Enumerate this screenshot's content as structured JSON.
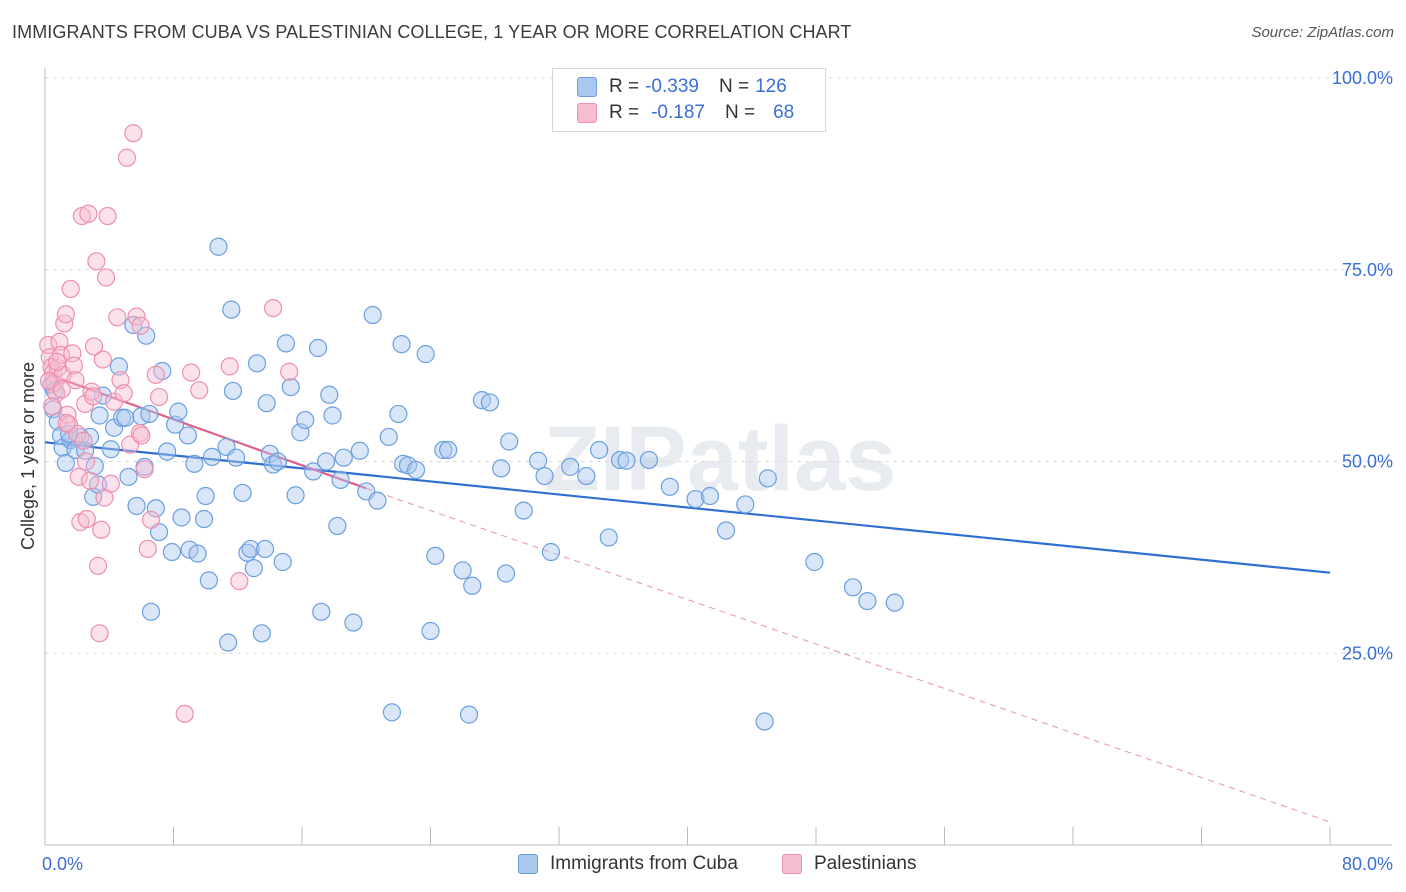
{
  "header": {
    "title": "IMMIGRANTS FROM CUBA VS PALESTINIAN COLLEGE, 1 YEAR OR MORE CORRELATION CHART",
    "source": "Source: ZipAtlas.com"
  },
  "legend_top": {
    "rows": [
      {
        "r_label": "R = ",
        "r_value": "-0.339",
        "n_label": "N = ",
        "n_value": "126"
      },
      {
        "r_label": "R = ",
        "r_value": "-0.187",
        "n_label": "N = ",
        "n_value": "68"
      }
    ]
  },
  "watermark": "ZIPatlas",
  "colors": {
    "cuba_fill": "#aac8ee",
    "cuba_stroke": "#6a9fe0",
    "cuba_line": "#2f6fd0",
    "pal_fill": "#f6bcd0",
    "pal_stroke": "#ee8fb0",
    "pal_line": "#e0608a",
    "tick_text": "#3a6fd6"
  },
  "chart_data": {
    "type": "scatter",
    "title": "IMMIGRANTS FROM CUBA VS PALESTINIAN COLLEGE, 1 YEAR OR MORE CORRELATION CHART",
    "xlabel": "",
    "ylabel": "College, 1 year or more",
    "xlim": [
      0,
      80
    ],
    "ylim": [
      0,
      100
    ],
    "x_tick_labels": [
      "0.0%",
      "80.0%"
    ],
    "y_tick_labels": [
      "25.0%",
      "50.0%",
      "75.0%",
      "100.0%"
    ],
    "y_ticks": [
      25,
      50,
      75,
      100
    ],
    "grid": true,
    "legend_position": "bottom",
    "series": [
      {
        "name": "Immigrants from Cuba",
        "r": -0.339,
        "n": 126,
        "trend": {
          "x0": 0,
          "y0": 52.5,
          "x1": 80,
          "y1": 35.5
        },
        "points": [
          [
            0.5,
            56.8
          ],
          [
            0.8,
            55.2
          ],
          [
            1.0,
            53.4
          ],
          [
            1.1,
            51.8
          ],
          [
            1.3,
            49.8
          ],
          [
            1.6,
            52.8
          ],
          [
            1.9,
            51.5
          ],
          [
            2.2,
            53.2
          ],
          [
            2.5,
            51.4
          ],
          [
            2.8,
            53.2
          ],
          [
            3.0,
            45.4
          ],
          [
            3.1,
            49.4
          ],
          [
            3.3,
            47.0
          ],
          [
            3.4,
            56.0
          ],
          [
            3.6,
            58.6
          ],
          [
            4.1,
            51.6
          ],
          [
            4.3,
            54.4
          ],
          [
            4.6,
            62.4
          ],
          [
            4.8,
            55.7
          ],
          [
            5.0,
            55.7
          ],
          [
            5.2,
            48.0
          ],
          [
            5.5,
            67.8
          ],
          [
            5.7,
            44.2
          ],
          [
            6.0,
            55.9
          ],
          [
            6.2,
            49.3
          ],
          [
            6.3,
            66.4
          ],
          [
            6.5,
            56.2
          ],
          [
            6.6,
            30.4
          ],
          [
            6.9,
            43.9
          ],
          [
            7.1,
            40.8
          ],
          [
            7.3,
            61.8
          ],
          [
            7.6,
            51.3
          ],
          [
            7.9,
            38.2
          ],
          [
            8.1,
            54.8
          ],
          [
            8.3,
            56.5
          ],
          [
            8.5,
            42.7
          ],
          [
            8.9,
            53.4
          ],
          [
            9.0,
            38.5
          ],
          [
            9.3,
            49.7
          ],
          [
            9.5,
            38.0
          ],
          [
            9.9,
            42.5
          ],
          [
            10.0,
            45.5
          ],
          [
            10.2,
            34.5
          ],
          [
            10.4,
            50.6
          ],
          [
            10.8,
            78.0
          ],
          [
            11.3,
            51.9
          ],
          [
            11.4,
            26.4
          ],
          [
            11.6,
            69.8
          ],
          [
            11.7,
            59.2
          ],
          [
            11.9,
            50.5
          ],
          [
            12.3,
            45.9
          ],
          [
            12.6,
            38.1
          ],
          [
            12.8,
            38.6
          ],
          [
            13.0,
            36.1
          ],
          [
            13.2,
            62.8
          ],
          [
            13.5,
            27.6
          ],
          [
            13.7,
            38.6
          ],
          [
            13.8,
            57.6
          ],
          [
            14.0,
            51.0
          ],
          [
            14.2,
            49.6
          ],
          [
            14.5,
            50.0
          ],
          [
            14.8,
            36.9
          ],
          [
            15.0,
            65.4
          ],
          [
            15.3,
            59.7
          ],
          [
            15.6,
            45.6
          ],
          [
            15.9,
            53.8
          ],
          [
            16.2,
            55.4
          ],
          [
            16.7,
            48.7
          ],
          [
            17.0,
            64.8
          ],
          [
            17.2,
            30.4
          ],
          [
            17.5,
            50.0
          ],
          [
            17.7,
            58.7
          ],
          [
            17.9,
            56.0
          ],
          [
            18.2,
            41.6
          ],
          [
            18.4,
            47.6
          ],
          [
            18.6,
            50.5
          ],
          [
            19.2,
            29.0
          ],
          [
            19.6,
            51.4
          ],
          [
            20.0,
            46.1
          ],
          [
            20.4,
            69.1
          ],
          [
            20.7,
            44.9
          ],
          [
            21.4,
            53.2
          ],
          [
            21.6,
            17.3
          ],
          [
            22.0,
            56.2
          ],
          [
            22.2,
            65.3
          ],
          [
            22.3,
            49.7
          ],
          [
            22.6,
            49.5
          ],
          [
            23.1,
            48.9
          ],
          [
            23.7,
            64.0
          ],
          [
            24.0,
            27.9
          ],
          [
            24.3,
            37.7
          ],
          [
            24.8,
            51.5
          ],
          [
            25.1,
            51.5
          ],
          [
            26.0,
            35.8
          ],
          [
            26.4,
            17.0
          ],
          [
            26.6,
            33.8
          ],
          [
            27.2,
            58.0
          ],
          [
            27.7,
            57.7
          ],
          [
            28.4,
            49.1
          ],
          [
            28.7,
            35.4
          ],
          [
            28.9,
            52.6
          ],
          [
            29.8,
            43.6
          ],
          [
            30.7,
            50.1
          ],
          [
            31.1,
            48.1
          ],
          [
            31.5,
            38.2
          ],
          [
            32.7,
            49.3
          ],
          [
            33.7,
            48.1
          ],
          [
            34.5,
            51.5
          ],
          [
            35.1,
            40.1
          ],
          [
            35.8,
            50.2
          ],
          [
            36.2,
            50.1
          ],
          [
            37.6,
            50.2
          ],
          [
            38.9,
            46.7
          ],
          [
            40.5,
            45.1
          ],
          [
            41.4,
            45.5
          ],
          [
            42.4,
            41.0
          ],
          [
            43.6,
            44.4
          ],
          [
            44.8,
            16.1
          ],
          [
            45.0,
            47.8
          ],
          [
            47.9,
            36.9
          ],
          [
            50.3,
            33.6
          ],
          [
            51.2,
            31.8
          ],
          [
            52.9,
            31.6
          ],
          [
            0.4,
            60.0
          ],
          [
            0.6,
            59.2
          ],
          [
            1.5,
            53.6
          ]
        ]
      },
      {
        "name": "Palestinians",
        "r": -0.187,
        "n": 68,
        "trend": {
          "x0": 0,
          "y0": 61.5,
          "x1": 20,
          "y1": 46.5
        },
        "trend_extended": {
          "x0": 20,
          "y0": 46.5,
          "x1": 80,
          "y1": 3.0
        },
        "points": [
          [
            0.2,
            65.2
          ],
          [
            0.3,
            63.6
          ],
          [
            0.4,
            62.3
          ],
          [
            0.5,
            61.5
          ],
          [
            0.6,
            60.2
          ],
          [
            0.7,
            58.9
          ],
          [
            0.8,
            62.2
          ],
          [
            0.9,
            65.6
          ],
          [
            1.0,
            63.9
          ],
          [
            1.1,
            61.3
          ],
          [
            1.2,
            68.0
          ],
          [
            1.3,
            69.2
          ],
          [
            1.4,
            56.1
          ],
          [
            1.5,
            54.8
          ],
          [
            1.6,
            72.5
          ],
          [
            1.7,
            64.1
          ],
          [
            1.8,
            62.5
          ],
          [
            1.9,
            60.6
          ],
          [
            2.0,
            53.6
          ],
          [
            2.1,
            48.0
          ],
          [
            2.2,
            42.1
          ],
          [
            2.3,
            82.0
          ],
          [
            2.4,
            52.7
          ],
          [
            2.5,
            57.5
          ],
          [
            2.6,
            42.5
          ],
          [
            2.7,
            82.3
          ],
          [
            2.8,
            47.5
          ],
          [
            2.9,
            59.1
          ],
          [
            3.0,
            58.5
          ],
          [
            3.2,
            76.1
          ],
          [
            3.3,
            36.4
          ],
          [
            3.4,
            27.6
          ],
          [
            3.5,
            41.1
          ],
          [
            3.6,
            63.3
          ],
          [
            3.7,
            45.3
          ],
          [
            3.8,
            74.0
          ],
          [
            3.9,
            82.0
          ],
          [
            4.1,
            47.1
          ],
          [
            4.3,
            57.8
          ],
          [
            4.5,
            68.8
          ],
          [
            4.7,
            60.6
          ],
          [
            4.9,
            58.9
          ],
          [
            5.1,
            89.6
          ],
          [
            5.3,
            52.2
          ],
          [
            5.5,
            92.8
          ],
          [
            5.7,
            68.9
          ],
          [
            5.9,
            53.7
          ],
          [
            6.0,
            53.4
          ],
          [
            6.2,
            49.0
          ],
          [
            6.4,
            38.6
          ],
          [
            6.6,
            42.4
          ],
          [
            6.9,
            61.3
          ],
          [
            7.1,
            58.4
          ],
          [
            8.7,
            17.1
          ],
          [
            9.1,
            61.6
          ],
          [
            9.6,
            59.3
          ],
          [
            11.5,
            62.4
          ],
          [
            12.1,
            34.4
          ],
          [
            14.2,
            70.0
          ],
          [
            15.2,
            61.7
          ],
          [
            0.25,
            60.5
          ],
          [
            0.45,
            57.2
          ],
          [
            0.75,
            63.0
          ],
          [
            1.05,
            59.4
          ],
          [
            1.35,
            55.0
          ],
          [
            2.55,
            50.0
          ],
          [
            3.05,
            65.0
          ],
          [
            5.95,
            67.7
          ]
        ]
      }
    ]
  }
}
